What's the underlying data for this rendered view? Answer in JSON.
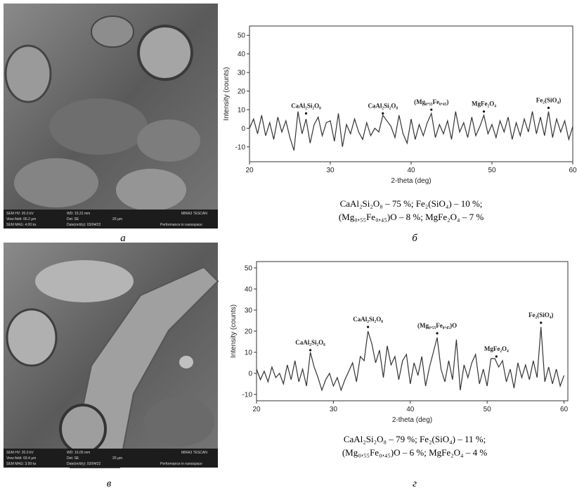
{
  "chart_data": [
    {
      "type": "line",
      "x_label": "2-theta (deg)",
      "y_label": "Intensity (counts)",
      "x": [
        20,
        20.5,
        21,
        21.5,
        22,
        22.5,
        23,
        23.5,
        24,
        24.5,
        25,
        25.5,
        26,
        26.5,
        27,
        27.5,
        28,
        28.5,
        29,
        29.5,
        30,
        30.5,
        31,
        31.5,
        32,
        32.5,
        33,
        33.5,
        34,
        34.5,
        35,
        35.5,
        36,
        36.5,
        37,
        37.5,
        38,
        38.5,
        39,
        39.5,
        40,
        40.5,
        41,
        41.5,
        42,
        42.5,
        43,
        43.5,
        44,
        44.5,
        45,
        45.5,
        46,
        46.5,
        47,
        47.5,
        48,
        48.5,
        49,
        49.5,
        50,
        50.5,
        51,
        51.5,
        52,
        52.5,
        53,
        53.5,
        54,
        54.5,
        55,
        55.5,
        56,
        56.5,
        57,
        57.5,
        58,
        58.5,
        59,
        59.5,
        60
      ],
      "values": [
        0,
        5,
        -3,
        7,
        -4,
        3,
        -6,
        6,
        -2,
        4,
        -5,
        -12,
        9,
        -3,
        5,
        -8,
        2,
        6,
        -4,
        3,
        4,
        -7,
        8,
        -10,
        2,
        -3,
        5,
        -2,
        -6,
        3,
        -4,
        0,
        -2,
        7,
        4,
        1,
        -5,
        7,
        -3,
        -8,
        5,
        -6,
        2,
        -4,
        3,
        8,
        -5,
        2,
        -3,
        4,
        -6,
        9,
        -2,
        3,
        -5,
        6,
        -4,
        1,
        7,
        -3,
        2,
        -5,
        4,
        -2,
        6,
        -6,
        3,
        -4,
        5,
        -2,
        9,
        -3,
        6,
        -4,
        9,
        -5,
        5,
        -2,
        4,
        -6,
        1
      ],
      "color": "#333333",
      "xlim": [
        20,
        60
      ],
      "ylim": [
        -18,
        55
      ],
      "xticks": [
        20,
        30,
        40,
        50,
        60
      ],
      "yticks": [
        -10,
        0,
        10,
        20,
        30,
        40,
        50
      ],
      "annotations": [
        {
          "text": "CaAl₂Si₂O₈",
          "x": 27,
          "y": 8
        },
        {
          "text": "CaAl₂Si₂O₈",
          "x": 36.5,
          "y": 8
        },
        {
          "text": "(Mg₀.₅₅Fe₀.₄₅)",
          "x": 42.5,
          "y": 10
        },
        {
          "text": "MgFe₂O₄",
          "x": 49,
          "y": 9
        },
        {
          "text": "Fe₂(SiO₄)",
          "x": 57,
          "y": 11
        }
      ]
    },
    {
      "type": "line",
      "x_label": "2-theta (deg)",
      "y_label": "Intensity (counts)",
      "x": [
        20,
        20.5,
        21,
        21.5,
        22,
        22.5,
        23,
        23.5,
        24,
        24.5,
        25,
        25.5,
        26,
        26.5,
        27,
        27.5,
        28,
        28.5,
        29,
        29.5,
        30,
        30.5,
        31,
        31.5,
        32,
        32.5,
        33,
        33.5,
        34,
        34.5,
        35,
        35.5,
        36,
        36.5,
        37,
        37.5,
        38,
        38.5,
        39,
        39.5,
        40,
        40.5,
        41,
        41.5,
        42,
        42.5,
        43,
        43.5,
        44,
        44.5,
        45,
        45.5,
        46,
        46.5,
        47,
        47.5,
        48,
        48.5,
        49,
        49.5,
        50,
        50.5,
        51,
        51.5,
        52,
        52.5,
        53,
        53.5,
        54,
        54.5,
        55,
        55.5,
        56,
        56.5,
        57,
        57.5,
        58,
        58.5,
        59,
        59.5,
        60
      ],
      "values": [
        2,
        -3,
        1,
        -4,
        3,
        -2,
        0,
        -5,
        4,
        -3,
        6,
        -4,
        2,
        -6,
        10,
        3,
        -2,
        -8,
        -3,
        0,
        -6,
        -2,
        -8,
        -3,
        1,
        5,
        -4,
        8,
        6,
        20,
        14,
        5,
        11,
        -2,
        13,
        4,
        8,
        -3,
        6,
        9,
        -5,
        5,
        -1,
        8,
        -6,
        3,
        10,
        17,
        2,
        -4,
        6,
        -3,
        16,
        -8,
        4,
        -2,
        5,
        9,
        -5,
        2,
        -6,
        7,
        7,
        3,
        6,
        -4,
        2,
        -7,
        5,
        -2,
        4,
        -3,
        6,
        -2,
        22,
        -4,
        3,
        -5,
        2,
        -6,
        -1
      ],
      "color": "#333333",
      "xlim": [
        20,
        60.5
      ],
      "ylim": [
        -13,
        53
      ],
      "xticks": [
        20,
        30,
        40,
        50,
        60
      ],
      "yticks": [
        -10,
        0,
        10,
        20,
        30,
        40,
        50
      ],
      "annotations": [
        {
          "text": "CaAl₂Si₂O₈",
          "x": 27,
          "y": 11
        },
        {
          "text": "CaAl₂Si₂O₈",
          "x": 34.5,
          "y": 22
        },
        {
          "text": "(Mg₀.₅₅Fe₀.₄₅)O",
          "x": 43.5,
          "y": 19
        },
        {
          "text": "MgFe₂O₄",
          "x": 51.2,
          "y": 8
        },
        {
          "text": "Fe₂(SiO₄)",
          "x": 57,
          "y": 24
        }
      ]
    }
  ],
  "captions": [
    [
      "CaAl₂Si₂O₈ – 75 %; Fe₂(SiO₄) – 10 %;",
      "(Mg₀,₅₅Fe₀,₄₅)O – 8 %; MgFe₂O₄ – 7 %"
    ],
    [
      "CaAl₂Si₂O₈ – 79 %; Fe₂(SiO₄) – 11 %;",
      "(Mg₀,₅₅Fe₀,₄₅)O – 6 %; MgFe₂O₄ – 4 %"
    ]
  ],
  "panels": [
    "а",
    "б",
    "в",
    "г"
  ],
  "sem": [
    {
      "hv": "SEM HV: 20.0 kV",
      "wd": "WD: 15.31 mm",
      "brand": "MIRA3 TESCAN",
      "vf": "View field: 66.2 µm",
      "det": "Det: SE",
      "scale": "20 µm",
      "mag": "SEM MAG: 4.00 kx",
      "date": "Date(m/d/y): 03/04/22",
      "slogan": "Performance in nanospace"
    },
    {
      "hv": "SEM HV: 20.0 kV",
      "wd": "WD: 16.05 mm",
      "brand": "MIRA3 TESCAN",
      "vf": "View field: 69.4 µm",
      "det": "Det: SE",
      "scale": "20 µm",
      "mag": "SEM MAG: 3.99 kx",
      "date": "Date(m/d/y): 03/04/22",
      "slogan": "Performance in nanospace"
    }
  ]
}
